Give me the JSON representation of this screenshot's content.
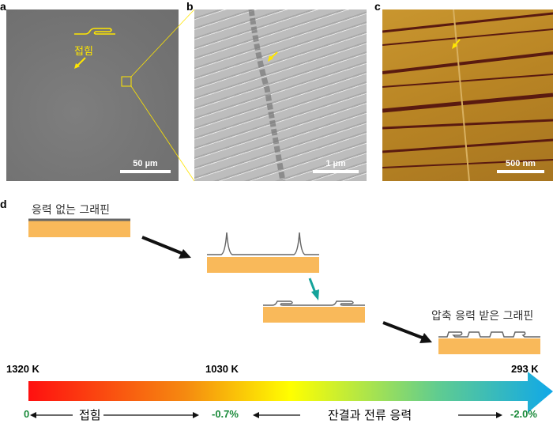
{
  "panels": {
    "a": {
      "label": "a",
      "annotation": "접힘",
      "scale_bar": "50 µm"
    },
    "b": {
      "label": "b",
      "scale_bar": "1 µm"
    },
    "c": {
      "label": "c",
      "scale_bar": "500 nm"
    },
    "d": {
      "label": "d",
      "start_label": "응력 없는 그래핀",
      "end_label": "압축 응력 받은 그래핀"
    }
  },
  "temperature_bar": {
    "temperatures": [
      "1320 K",
      "1030 K",
      "293 K"
    ],
    "strains": [
      "0",
      "-0.7%",
      "-2.0%"
    ],
    "stage1": "접힘",
    "stage2": "잔결과 전류 응력",
    "colors": [
      "#ff1010",
      "#f58a10",
      "#ffff00",
      "#60cc90",
      "#10a8e8"
    ]
  },
  "colors": {
    "substrate": "#f9b95a",
    "annotation": "#ffe600",
    "strain_text": "#1a8a3a",
    "teal_arrow": "#14a39a"
  }
}
